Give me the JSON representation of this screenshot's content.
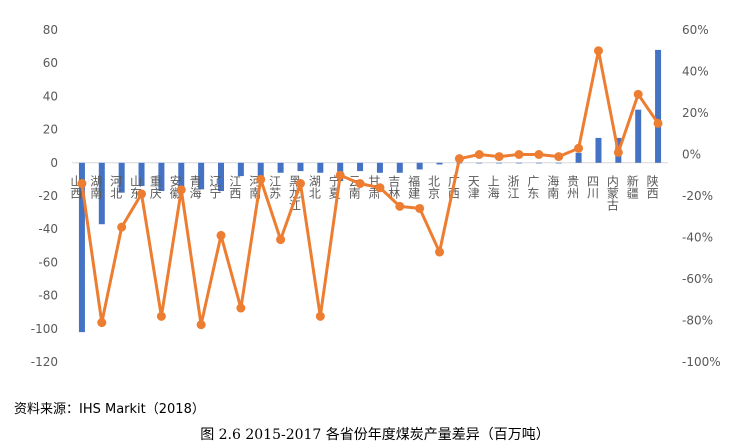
{
  "chart_data": {
    "type": "bar+line",
    "categories": [
      "山西",
      "湖南",
      "河北",
      "山东",
      "重庆",
      "安徽",
      "青海",
      "辽宁",
      "江西",
      "河南",
      "江苏",
      "黑龙江",
      "湖北",
      "宁夏",
      "云南",
      "甘肃",
      "吉林",
      "福建",
      "北京",
      "广西",
      "天津",
      "上海",
      "浙江",
      "广东",
      "海南",
      "贵州",
      "四川",
      "内蒙古",
      "新疆",
      "陕西"
    ],
    "bar_series": {
      "axis": "left",
      "color": "#4472C4",
      "values": [
        -102,
        -37,
        -18,
        -14,
        -17,
        -18,
        -16,
        -17,
        -8,
        -12,
        -6,
        -5,
        -6,
        -11,
        -5,
        -6,
        -6,
        -4,
        -1,
        0,
        0,
        0,
        0,
        0,
        0,
        6,
        15,
        15,
        32,
        68
      ]
    },
    "line_series": {
      "axis": "right",
      "color": "#ED7D31",
      "values": [
        -14,
        -81,
        -35,
        -19,
        -78,
        -17,
        -82,
        -39,
        -74,
        -12,
        -41,
        -14,
        -78,
        -10,
        -14,
        -16,
        -25,
        -26,
        -47,
        -2,
        0,
        -1,
        0,
        0,
        -1,
        3,
        50,
        1,
        29,
        15
      ]
    },
    "left_axis": {
      "ylim": [
        -120,
        80
      ],
      "ticks": [
        -120,
        -100,
        -80,
        -60,
        -40,
        -20,
        0,
        20,
        40,
        60,
        80
      ]
    },
    "right_axis": {
      "ylim": [
        -100,
        60
      ],
      "ticks": [
        "-100%",
        "-80%",
        "-60%",
        "-40%",
        "-20%",
        "0%",
        "20%",
        "40%",
        "60%"
      ]
    },
    "grid": false
  },
  "source": "资料来源：IHS Markit（2018）",
  "caption": "图 2.6 2015-2017 各省份年度煤炭产量差异（百万吨）"
}
